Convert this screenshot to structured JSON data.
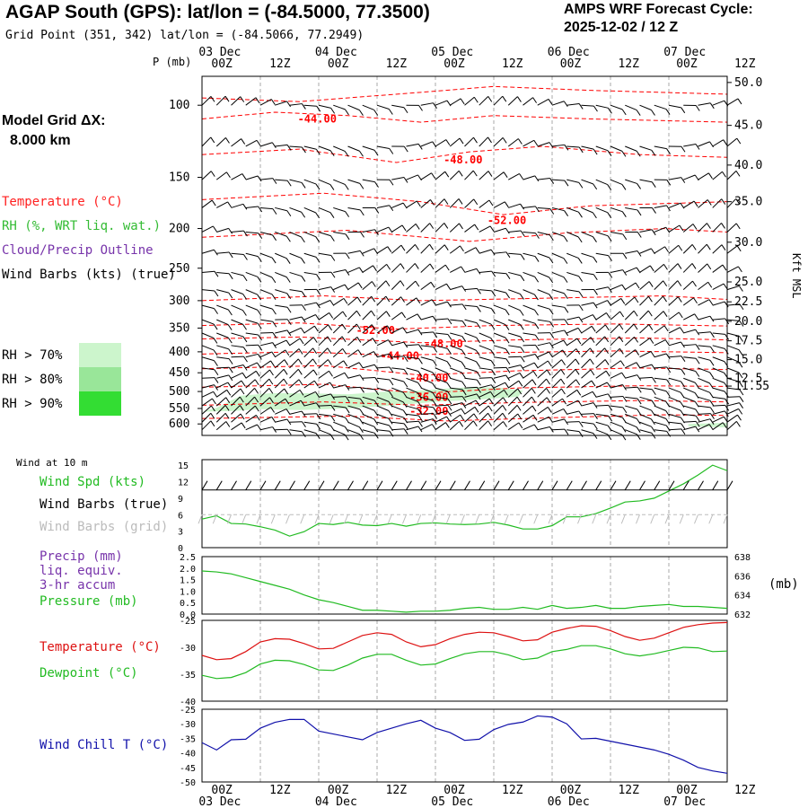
{
  "header": {
    "title": "AGAP South (GPS):  lat/lon = (-84.5000, 77.3500)",
    "grid_point": "Grid Point (351, 342) lat/lon = (-84.5066, 77.2949)",
    "cycle_line1": "AMPS WRF Forecast Cycle:",
    "cycle_line2": "2025-12-02 / 12  Z"
  },
  "model_grid": {
    "label": "Model Grid ΔX:",
    "value": "8.000 km"
  },
  "upper_legend": {
    "temperature": "Temperature (°C)",
    "rh": "RH (%, WRT liq. wat.)",
    "cloud": "Cloud/Precip Outline",
    "wind": "Wind Barbs (kts) (true)",
    "rh70": "RH > 70%",
    "rh80": "RH > 80%",
    "rh90": "RH > 90%"
  },
  "colors": {
    "temperature": "#ff0000",
    "rh_green": "#33bb33",
    "cloud_purple": "#7733aa",
    "wind_chill_blue": "#1111aa",
    "grid_gray": "#aaaaaa",
    "rh70": "#ccf5cc",
    "rh80": "#99e699",
    "rh90": "#33dd33"
  },
  "surface_legend": {
    "wind_at": "Wind at 10 m",
    "wind_spd": "Wind Spd (kts)",
    "barbs_true": "Wind Barbs (true)",
    "barbs_grid": "Wind Barbs (grid)",
    "precip1": "Precip (mm)",
    "precip2": "liq. equiv.",
    "precip3": "3-hr accum",
    "pressure": "Pressure (mb)",
    "temperature": "Temperature (°C)",
    "dewpoint": "Dewpoint (°C)",
    "wind_chill": "Wind Chill T (°C)",
    "mb_unit": "(mb)"
  },
  "axes": {
    "pressure_label": "P (mb)",
    "kft_label": "Kft MSL",
    "time_ticks": [
      "00Z",
      "12Z",
      "00Z",
      "12Z",
      "00Z",
      "12Z",
      "00Z",
      "12Z",
      "00Z",
      "12Z"
    ],
    "date_labels": [
      "03 Dec",
      "04 Dec",
      "05 Dec",
      "06 Dec",
      "07 Dec"
    ]
  },
  "chart_data": [
    {
      "type": "line",
      "panel": "upper-air-cross-section",
      "title": "Upper-air time-height cross section",
      "ylabel": "P (mb)",
      "y2label": "Kft MSL",
      "pressure_levels": [
        100,
        150,
        200,
        250,
        300,
        350,
        400,
        450,
        500,
        550,
        600
      ],
      "ylim": [
        640,
        85
      ],
      "kft_ticks": [
        "50.0",
        "45.0",
        "40.0",
        "35.0",
        "30.0",
        "25.0",
        "22.5",
        "20.0",
        "17.5",
        "15.0",
        "12.5",
        "11.55"
      ],
      "kft_pressures": [
        88,
        112,
        140,
        172,
        216,
        270,
        302,
        337,
        376,
        418,
        464,
        485
      ],
      "x_hours": [
        0,
        108
      ],
      "temperature_contour_labels": [
        {
          "label": "-44.00",
          "hour": 23,
          "p": 108
        },
        {
          "label": "-48.00",
          "hour": 53,
          "p": 136
        },
        {
          "label": "-52.00",
          "hour": 62,
          "p": 191
        },
        {
          "label": "-52.00",
          "hour": 35,
          "p": 355
        },
        {
          "label": "-48.00",
          "hour": 49,
          "p": 382
        },
        {
          "label": "-44.00",
          "hour": 40,
          "p": 409
        },
        {
          "label": "-40.00",
          "hour": 46,
          "p": 463
        },
        {
          "label": "-36.00",
          "hour": 46,
          "p": 517
        },
        {
          "label": "-32.00",
          "hour": 46,
          "p": 558
        }
      ]
    },
    {
      "type": "line",
      "panel": "wind-10m",
      "title": "Wind at 10 m",
      "ylabel": "Wind Spd (kts)",
      "yticks": [
        0,
        3,
        6,
        9,
        12,
        15
      ],
      "ylim": [
        0,
        16
      ],
      "x": [
        0,
        3,
        6,
        9,
        12,
        15,
        18,
        21,
        24,
        27,
        30,
        33,
        36,
        39,
        42,
        45,
        48,
        51,
        54,
        57,
        60,
        63,
        66,
        69,
        72,
        75,
        78,
        81,
        84,
        87,
        90,
        93,
        96,
        99,
        102,
        105,
        108
      ],
      "series": [
        {
          "name": "Wind Spd (kts)",
          "values": [
            5.2,
            5.8,
            4.4,
            4.3,
            3.8,
            3.2,
            2.1,
            2.9,
            4.4,
            4.2,
            4.6,
            4.1,
            4.0,
            4.4,
            3.9,
            4.4,
            4.5,
            4.3,
            4.2,
            4.3,
            4.6,
            4.1,
            3.4,
            3.4,
            4.0,
            5.6,
            5.6,
            6.2,
            7.2,
            8.3,
            8.5,
            9.0,
            10.3,
            11.6,
            13.2,
            15.0,
            14.0
          ]
        }
      ]
    },
    {
      "type": "line",
      "panel": "precip-pressure",
      "ylabel": "Precip (mm)",
      "yticks": [
        "0.0",
        "0.5",
        "1.0",
        "1.5",
        "2.0",
        "2.5"
      ],
      "ylim": [
        0,
        2.5
      ],
      "y2label": "Pressure (mb)",
      "y2ticks": [
        632,
        634,
        636,
        638
      ],
      "y2lim": [
        632,
        638
      ],
      "x": [
        0,
        3,
        6,
        9,
        12,
        15,
        18,
        21,
        24,
        27,
        30,
        33,
        36,
        39,
        42,
        45,
        48,
        51,
        54,
        57,
        60,
        63,
        66,
        69,
        72,
        75,
        78,
        81,
        84,
        87,
        90,
        93,
        96,
        99,
        102,
        105,
        108
      ],
      "series": [
        {
          "name": "Pressure (mb)",
          "values": [
            636.5,
            636.4,
            636.2,
            635.8,
            635.4,
            635.0,
            634.6,
            634.0,
            633.5,
            633.2,
            632.8,
            632.4,
            632.4,
            632.3,
            632.2,
            632.3,
            632.3,
            632.4,
            632.6,
            632.7,
            632.5,
            632.5,
            632.7,
            632.5,
            632.9,
            632.6,
            632.7,
            632.9,
            632.6,
            632.6,
            632.8,
            632.9,
            633.0,
            632.8,
            632.8,
            632.7,
            632.6
          ]
        }
      ]
    },
    {
      "type": "line",
      "panel": "temperature-dewpoint",
      "ylabel": "Temperature (°C)",
      "yticks": [
        -25,
        -30,
        -35,
        -40
      ],
      "ylim": [
        -40,
        -25
      ],
      "x": [
        0,
        3,
        6,
        9,
        12,
        15,
        18,
        21,
        24,
        27,
        30,
        33,
        36,
        39,
        42,
        45,
        48,
        51,
        54,
        57,
        60,
        63,
        66,
        69,
        72,
        75,
        78,
        81,
        84,
        87,
        90,
        93,
        96,
        99,
        102,
        105,
        108
      ],
      "series": [
        {
          "name": "Temperature (°C)",
          "values": [
            -31.5,
            -32.3,
            -32.1,
            -30.8,
            -29.0,
            -28.4,
            -28.5,
            -29.3,
            -30.3,
            -30.2,
            -29.0,
            -27.8,
            -27.3,
            -27.6,
            -29.0,
            -29.9,
            -29.5,
            -28.4,
            -27.6,
            -27.2,
            -27.3,
            -28.0,
            -28.8,
            -28.6,
            -27.2,
            -26.5,
            -26.0,
            -26.1,
            -26.9,
            -28.0,
            -28.7,
            -28.3,
            -27.3,
            -26.3,
            -25.8,
            -25.5,
            -25.4
          ]
        },
        {
          "name": "Dewpoint (°C)",
          "values": [
            -35.2,
            -35.8,
            -35.6,
            -34.7,
            -33.1,
            -32.4,
            -32.5,
            -33.2,
            -34.2,
            -34.3,
            -33.3,
            -32.0,
            -31.3,
            -31.3,
            -32.4,
            -33.3,
            -33.1,
            -32.1,
            -31.2,
            -30.8,
            -30.8,
            -31.4,
            -32.3,
            -32.0,
            -30.8,
            -30.4,
            -29.7,
            -29.7,
            -30.3,
            -31.2,
            -31.6,
            -31.2,
            -30.6,
            -30.0,
            -30.1,
            -30.8,
            -30.7
          ]
        }
      ]
    },
    {
      "type": "line",
      "panel": "wind-chill",
      "ylabel": "Wind Chill T (°C)",
      "yticks": [
        -25,
        -30,
        -35,
        -40,
        -45,
        -50
      ],
      "ylim": [
        -50,
        -25
      ],
      "x": [
        0,
        3,
        6,
        9,
        12,
        15,
        18,
        21,
        24,
        27,
        30,
        33,
        36,
        39,
        42,
        45,
        48,
        51,
        54,
        57,
        60,
        63,
        66,
        69,
        72,
        75,
        78,
        81,
        84,
        87,
        90,
        93,
        96,
        99,
        102,
        105,
        108
      ],
      "series": [
        {
          "name": "Wind Chill T (°C)",
          "values": [
            -36.5,
            -39.0,
            -35.5,
            -35.3,
            -31.5,
            -29.5,
            -28.5,
            -28.5,
            -32.5,
            -33.5,
            -34.5,
            -35.5,
            -33.0,
            -31.5,
            -30.0,
            -28.8,
            -31.5,
            -33.0,
            -35.7,
            -35.3,
            -32.0,
            -30.2,
            -29.4,
            -27.3,
            -27.7,
            -30.0,
            -35.2,
            -35.0,
            -36.0,
            -37.0,
            -38.0,
            -39.0,
            -40.5,
            -42.5,
            -45.0,
            -46.2,
            -47.0
          ]
        }
      ]
    }
  ]
}
